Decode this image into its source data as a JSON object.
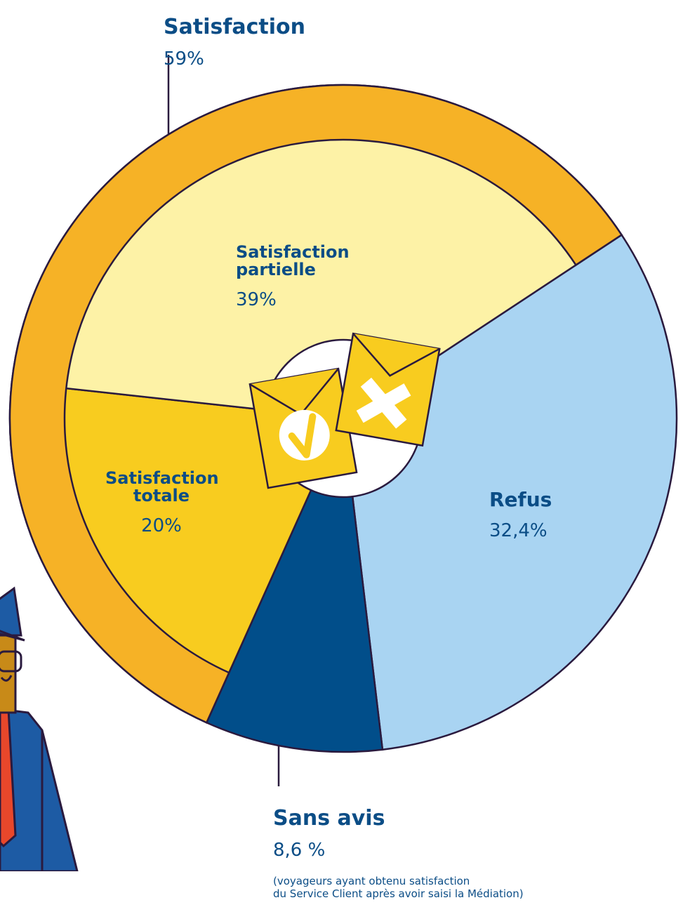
{
  "chart_data": {
    "type": "pie",
    "outer_ring": {
      "name": "Satisfaction",
      "value": 59,
      "value_label": "59%",
      "color": "#f6b226"
    },
    "series": [
      {
        "name": "Refus",
        "value": 32.4,
        "value_label": "32,4%",
        "color": "#a9d4f2"
      },
      {
        "name": "Sans avis",
        "value": 8.6,
        "value_label": "8,6 %",
        "color": "#014e8a",
        "note": "(voyageurs ayant obtenu satisfaction\ndu Service Client après avoir saisi la Médiation)"
      },
      {
        "name": "Satisfaction\ntotale",
        "value": 20,
        "value_label": "20%",
        "color": "#f8cc1f"
      },
      {
        "name": "Satisfaction\npartielle",
        "value": 39,
        "value_label": "39%",
        "color": "#fdf2a6"
      }
    ]
  }
}
